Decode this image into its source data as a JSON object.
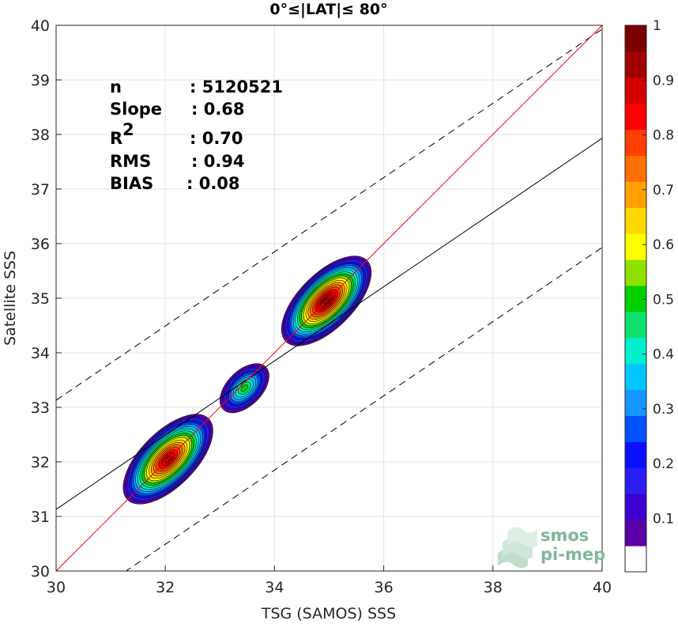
{
  "chart_data": {
    "type": "heatmap",
    "title": "0°≤|LAT|≤ 80°",
    "xlabel": "TSG (SAMOS) SSS",
    "ylabel": "Satellite SSS",
    "xlim": [
      30,
      40
    ],
    "ylim": [
      30,
      40
    ],
    "x_ticks": [
      "30",
      "32",
      "34",
      "36",
      "38",
      "40"
    ],
    "y_ticks": [
      "30",
      "31",
      "32",
      "33",
      "34",
      "35",
      "36",
      "37",
      "38",
      "39",
      "40"
    ],
    "grid": true,
    "stats": [
      {
        "label": "n",
        "value": ": 5120521"
      },
      {
        "label": "Slope",
        "value": ": 0.68"
      },
      {
        "label": "R",
        "superscript": "2",
        "value": ": 0.70"
      },
      {
        "label": "RMS",
        "value": ": 0.94"
      },
      {
        "label": "BIAS",
        "value": ": 0.08"
      }
    ],
    "lines": {
      "identity": {
        "slope": 1,
        "intercept": 0,
        "color": "#ff0000"
      },
      "regression": {
        "slope": 0.68,
        "intercept": 10.73,
        "color": "#000000"
      },
      "upper_band": {
        "slope": 0.68,
        "intercept": 12.73,
        "color": "#000000",
        "dash": true
      },
      "lower_band": {
        "slope": 0.68,
        "intercept": 8.73,
        "color": "#000000",
        "dash": true
      }
    },
    "density_blobs": [
      {
        "cx": 32.05,
        "cy": 32.05,
        "rx": 1.05,
        "ry": 0.5,
        "angle_deg": 45,
        "peak": 0.95
      },
      {
        "cx": 33.45,
        "cy": 33.35,
        "rx": 0.55,
        "ry": 0.32,
        "angle_deg": 45,
        "peak": 0.5
      },
      {
        "cx": 34.95,
        "cy": 34.95,
        "rx": 1.05,
        "ry": 0.5,
        "angle_deg": 45,
        "peak": 1.0
      }
    ],
    "colorbar": {
      "ticks": [
        "0.1",
        "0.2",
        "0.3",
        "0.4",
        "0.5",
        "0.6",
        "0.7",
        "0.8",
        "0.9",
        "1"
      ],
      "levels": [
        "#ffffff",
        "#5c00a8",
        "#3a00d0",
        "#2a1ef0",
        "#0a10ff",
        "#0052ff",
        "#1596ff",
        "#00c8ff",
        "#00f0d0",
        "#10e070",
        "#00d000",
        "#90e000",
        "#ffff00",
        "#ffd800",
        "#ffa000",
        "#ff7000",
        "#ff4000",
        "#ff0000",
        "#d40000",
        "#a00000",
        "#7a0000"
      ]
    }
  },
  "logo": {
    "line1": "smos",
    "line2": "pi-mep"
  }
}
